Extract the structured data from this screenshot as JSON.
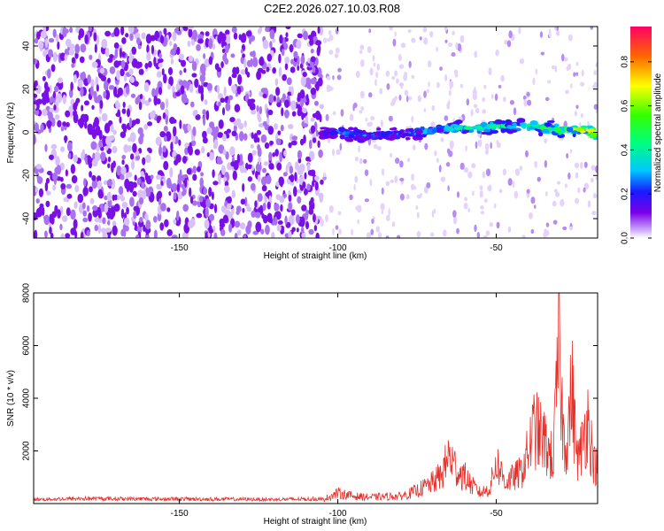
{
  "title": "C2E2.2026.027.10.03.R08",
  "chart_data": [
    {
      "type": "heatmap",
      "xlabel": "Height of straight line (km)",
      "ylabel": "Frequency (Hz)",
      "xlim": [
        -196,
        -18
      ],
      "ylim": [
        -49,
        49
      ],
      "xticks": [
        -150,
        -100,
        -50
      ],
      "yticks": [
        -40,
        -20,
        0,
        20,
        40
      ],
      "colorbar": {
        "label": "Normalized spectral amplitude",
        "range": [
          0,
          0.96
        ],
        "ticks": [
          0.0,
          0.2,
          0.4,
          0.6,
          0.8
        ]
      },
      "noise_region": {
        "x_from": -196,
        "x_to": -105,
        "freq_spread": [
          -49,
          49
        ],
        "amplitude": 0.1
      },
      "signal_trace": {
        "x": [
          -105,
          -100,
          -95,
          -90,
          -85,
          -80,
          -75,
          -70,
          -65,
          -60,
          -55,
          -50,
          -45,
          -40,
          -35,
          -30,
          -25,
          -20,
          -18
        ],
        "freq": [
          0,
          0,
          -1,
          -2,
          -1,
          -1,
          0,
          1,
          2,
          2,
          2,
          3,
          3,
          3,
          2,
          1,
          1,
          0,
          0
        ],
        "amplitude": [
          0.2,
          0.3,
          0.3,
          0.3,
          0.25,
          0.35,
          0.35,
          0.4,
          0.4,
          0.45,
          0.45,
          0.5,
          0.45,
          0.5,
          0.55,
          0.6,
          0.7,
          0.9,
          0.85
        ]
      }
    },
    {
      "type": "line",
      "xlabel": "Height of straight line (km)",
      "ylabel": "SNR (10 * v/v)",
      "xlim": [
        -196,
        -18
      ],
      "ylim": [
        0,
        8000
      ],
      "xticks": [
        -150,
        -100,
        -50
      ],
      "yticks": [
        2000,
        4000,
        6000,
        8000
      ],
      "color": "#e8302a",
      "series": [
        {
          "x": [
            -196,
            -180,
            -160,
            -140,
            -120,
            -105,
            -100,
            -95,
            -90,
            -85,
            -80,
            -75,
            -70,
            -67,
            -65,
            -62,
            -60,
            -58,
            -55,
            -52,
            -50,
            -47,
            -45,
            -42,
            -40,
            -38,
            -35,
            -32,
            -30,
            -29,
            -28,
            -26,
            -25,
            -24,
            -22,
            -21,
            -20,
            -19,
            -18
          ],
          "y": [
            150,
            180,
            170,
            160,
            150,
            170,
            500,
            350,
            300,
            330,
            350,
            600,
            1000,
            1400,
            2300,
            1500,
            1300,
            900,
            500,
            700,
            2000,
            1000,
            1200,
            1500,
            2400,
            3600,
            3000,
            2000,
            8000,
            3500,
            2800,
            5400,
            3000,
            2000,
            3500,
            4000,
            2800,
            1800,
            1900
          ]
        }
      ]
    }
  ]
}
